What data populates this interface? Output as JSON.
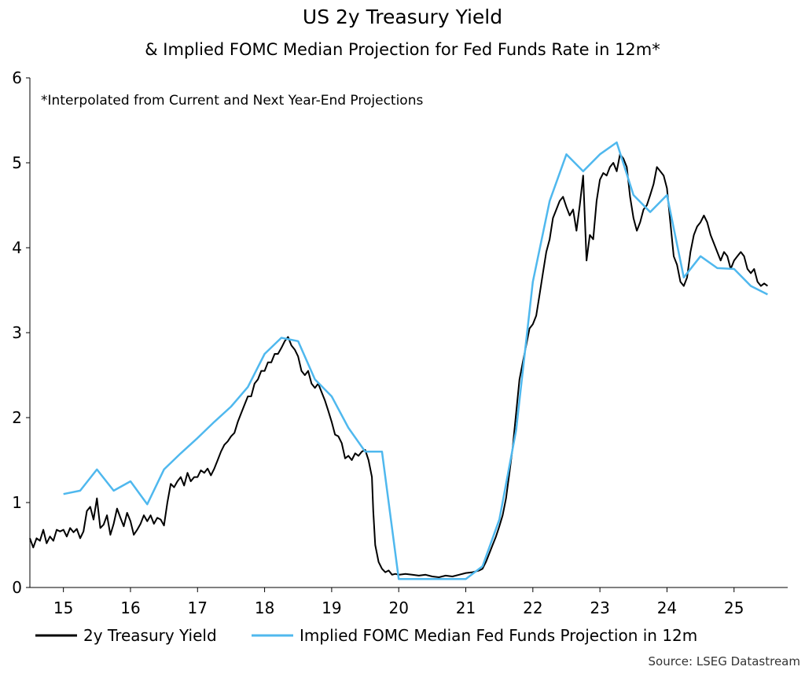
{
  "chart_data": {
    "type": "line",
    "title": "US 2y Treasury Yield",
    "subtitle": "& Implied FOMC Median Projection for Fed Funds Rate in 12m*",
    "note": "*Interpolated from Current and Next Year-End Projections",
    "source": "Source: LSEG Datastream",
    "xlabel": "",
    "ylabel": "",
    "xlim": [
      2014.5,
      2025.8
    ],
    "ylim": [
      0,
      6
    ],
    "yticks": [
      0,
      1,
      2,
      3,
      4,
      5,
      6
    ],
    "xtick_labels": [
      {
        "label": "15",
        "x": 2015.0
      },
      {
        "label": "16",
        "x": 2016.0
      },
      {
        "label": "17",
        "x": 2017.0
      },
      {
        "label": "18",
        "x": 2018.0
      },
      {
        "label": "19",
        "x": 2019.0
      },
      {
        "label": "20",
        "x": 2020.0
      },
      {
        "label": "21",
        "x": 2021.0
      },
      {
        "label": "22",
        "x": 2022.0
      },
      {
        "label": "23",
        "x": 2023.0
      },
      {
        "label": "24",
        "x": 2024.0
      },
      {
        "label": "25",
        "x": 2025.0
      }
    ],
    "legend_position": "bottom",
    "series": [
      {
        "name": "2y Treasury Yield",
        "color": "#000000",
        "points": [
          [
            2014.5,
            0.58
          ],
          [
            2014.55,
            0.47
          ],
          [
            2014.6,
            0.58
          ],
          [
            2014.65,
            0.55
          ],
          [
            2014.7,
            0.68
          ],
          [
            2014.75,
            0.52
          ],
          [
            2014.8,
            0.6
          ],
          [
            2014.85,
            0.55
          ],
          [
            2014.9,
            0.68
          ],
          [
            2014.95,
            0.66
          ],
          [
            2015.0,
            0.68
          ],
          [
            2015.05,
            0.6
          ],
          [
            2015.1,
            0.7
          ],
          [
            2015.15,
            0.65
          ],
          [
            2015.2,
            0.69
          ],
          [
            2015.25,
            0.58
          ],
          [
            2015.3,
            0.66
          ],
          [
            2015.35,
            0.9
          ],
          [
            2015.4,
            0.95
          ],
          [
            2015.45,
            0.8
          ],
          [
            2015.5,
            1.05
          ],
          [
            2015.55,
            0.7
          ],
          [
            2015.6,
            0.74
          ],
          [
            2015.65,
            0.85
          ],
          [
            2015.7,
            0.62
          ],
          [
            2015.75,
            0.75
          ],
          [
            2015.8,
            0.93
          ],
          [
            2015.85,
            0.82
          ],
          [
            2015.9,
            0.72
          ],
          [
            2015.95,
            0.88
          ],
          [
            2016.0,
            0.78
          ],
          [
            2016.05,
            0.62
          ],
          [
            2016.1,
            0.68
          ],
          [
            2016.15,
            0.75
          ],
          [
            2016.2,
            0.85
          ],
          [
            2016.25,
            0.78
          ],
          [
            2016.3,
            0.85
          ],
          [
            2016.35,
            0.75
          ],
          [
            2016.4,
            0.82
          ],
          [
            2016.45,
            0.8
          ],
          [
            2016.5,
            0.73
          ],
          [
            2016.55,
            1.0
          ],
          [
            2016.6,
            1.22
          ],
          [
            2016.65,
            1.18
          ],
          [
            2016.7,
            1.25
          ],
          [
            2016.75,
            1.3
          ],
          [
            2016.8,
            1.2
          ],
          [
            2016.85,
            1.35
          ],
          [
            2016.9,
            1.25
          ],
          [
            2016.95,
            1.3
          ],
          [
            2017.0,
            1.3
          ],
          [
            2017.05,
            1.38
          ],
          [
            2017.1,
            1.35
          ],
          [
            2017.15,
            1.4
          ],
          [
            2017.2,
            1.32
          ],
          [
            2017.25,
            1.4
          ],
          [
            2017.3,
            1.5
          ],
          [
            2017.35,
            1.6
          ],
          [
            2017.4,
            1.68
          ],
          [
            2017.45,
            1.72
          ],
          [
            2017.5,
            1.78
          ],
          [
            2017.55,
            1.82
          ],
          [
            2017.6,
            1.95
          ],
          [
            2017.65,
            2.05
          ],
          [
            2017.7,
            2.15
          ],
          [
            2017.75,
            2.25
          ],
          [
            2017.8,
            2.25
          ],
          [
            2017.85,
            2.4
          ],
          [
            2017.9,
            2.45
          ],
          [
            2017.95,
            2.55
          ],
          [
            2018.0,
            2.55
          ],
          [
            2018.05,
            2.65
          ],
          [
            2018.1,
            2.65
          ],
          [
            2018.15,
            2.75
          ],
          [
            2018.2,
            2.75
          ],
          [
            2018.25,
            2.82
          ],
          [
            2018.3,
            2.9
          ],
          [
            2018.35,
            2.95
          ],
          [
            2018.4,
            2.85
          ],
          [
            2018.45,
            2.8
          ],
          [
            2018.5,
            2.72
          ],
          [
            2018.55,
            2.55
          ],
          [
            2018.6,
            2.5
          ],
          [
            2018.65,
            2.55
          ],
          [
            2018.7,
            2.4
          ],
          [
            2018.75,
            2.35
          ],
          [
            2018.8,
            2.4
          ],
          [
            2018.85,
            2.3
          ],
          [
            2018.9,
            2.2
          ],
          [
            2018.95,
            2.08
          ],
          [
            2019.0,
            1.95
          ],
          [
            2019.05,
            1.8
          ],
          [
            2019.1,
            1.78
          ],
          [
            2019.15,
            1.7
          ],
          [
            2019.2,
            1.52
          ],
          [
            2019.25,
            1.55
          ],
          [
            2019.3,
            1.5
          ],
          [
            2019.35,
            1.58
          ],
          [
            2019.4,
            1.55
          ],
          [
            2019.45,
            1.6
          ],
          [
            2019.5,
            1.62
          ],
          [
            2019.55,
            1.5
          ],
          [
            2019.6,
            1.3
          ],
          [
            2019.62,
            0.9
          ],
          [
            2019.65,
            0.5
          ],
          [
            2019.7,
            0.3
          ],
          [
            2019.75,
            0.22
          ],
          [
            2019.8,
            0.18
          ],
          [
            2019.85,
            0.2
          ],
          [
            2019.9,
            0.15
          ],
          [
            2019.95,
            0.16
          ],
          [
            2020.0,
            0.15
          ],
          [
            2020.1,
            0.16
          ],
          [
            2020.2,
            0.15
          ],
          [
            2020.3,
            0.14
          ],
          [
            2020.4,
            0.15
          ],
          [
            2020.5,
            0.13
          ],
          [
            2020.6,
            0.12
          ],
          [
            2020.7,
            0.14
          ],
          [
            2020.8,
            0.13
          ],
          [
            2020.9,
            0.15
          ],
          [
            2021.0,
            0.17
          ],
          [
            2021.1,
            0.18
          ],
          [
            2021.2,
            0.2
          ],
          [
            2021.25,
            0.22
          ],
          [
            2021.3,
            0.3
          ],
          [
            2021.35,
            0.4
          ],
          [
            2021.4,
            0.5
          ],
          [
            2021.45,
            0.6
          ],
          [
            2021.5,
            0.72
          ],
          [
            2021.55,
            0.85
          ],
          [
            2021.6,
            1.05
          ],
          [
            2021.65,
            1.35
          ],
          [
            2021.7,
            1.65
          ],
          [
            2021.75,
            2.05
          ],
          [
            2021.8,
            2.45
          ],
          [
            2021.85,
            2.65
          ],
          [
            2021.9,
            2.85
          ],
          [
            2021.95,
            3.05
          ],
          [
            2022.0,
            3.1
          ],
          [
            2022.05,
            3.2
          ],
          [
            2022.1,
            3.45
          ],
          [
            2022.15,
            3.7
          ],
          [
            2022.2,
            3.95
          ],
          [
            2022.25,
            4.1
          ],
          [
            2022.3,
            4.35
          ],
          [
            2022.35,
            4.45
          ],
          [
            2022.4,
            4.55
          ],
          [
            2022.45,
            4.6
          ],
          [
            2022.5,
            4.48
          ],
          [
            2022.55,
            4.38
          ],
          [
            2022.6,
            4.45
          ],
          [
            2022.65,
            4.2
          ],
          [
            2022.7,
            4.5
          ],
          [
            2022.75,
            4.85
          ],
          [
            2022.8,
            3.85
          ],
          [
            2022.85,
            4.15
          ],
          [
            2022.9,
            4.1
          ],
          [
            2022.95,
            4.55
          ],
          [
            2023.0,
            4.8
          ],
          [
            2023.05,
            4.88
          ],
          [
            2023.1,
            4.85
          ],
          [
            2023.15,
            4.95
          ],
          [
            2023.2,
            5.0
          ],
          [
            2023.25,
            4.9
          ],
          [
            2023.3,
            5.1
          ],
          [
            2023.35,
            5.05
          ],
          [
            2023.4,
            4.95
          ],
          [
            2023.45,
            4.6
          ],
          [
            2023.5,
            4.35
          ],
          [
            2023.55,
            4.2
          ],
          [
            2023.6,
            4.3
          ],
          [
            2023.65,
            4.45
          ],
          [
            2023.7,
            4.5
          ],
          [
            2023.75,
            4.62
          ],
          [
            2023.8,
            4.75
          ],
          [
            2023.85,
            4.95
          ],
          [
            2023.9,
            4.9
          ],
          [
            2023.95,
            4.85
          ],
          [
            2024.0,
            4.7
          ],
          [
            2024.05,
            4.3
          ],
          [
            2024.1,
            3.9
          ],
          [
            2024.15,
            3.8
          ],
          [
            2024.2,
            3.6
          ],
          [
            2024.25,
            3.55
          ],
          [
            2024.3,
            3.65
          ],
          [
            2024.35,
            3.95
          ],
          [
            2024.4,
            4.15
          ],
          [
            2024.45,
            4.25
          ],
          [
            2024.5,
            4.3
          ],
          [
            2024.55,
            4.38
          ],
          [
            2024.6,
            4.3
          ],
          [
            2024.65,
            4.15
          ],
          [
            2024.7,
            4.05
          ],
          [
            2024.75,
            3.95
          ],
          [
            2024.8,
            3.85
          ],
          [
            2024.85,
            3.95
          ],
          [
            2024.9,
            3.9
          ],
          [
            2024.95,
            3.75
          ],
          [
            2025.0,
            3.85
          ],
          [
            2025.05,
            3.9
          ],
          [
            2025.1,
            3.95
          ],
          [
            2025.15,
            3.9
          ],
          [
            2025.2,
            3.75
          ],
          [
            2025.25,
            3.7
          ],
          [
            2025.3,
            3.75
          ],
          [
            2025.35,
            3.6
          ],
          [
            2025.4,
            3.55
          ],
          [
            2025.45,
            3.58
          ],
          [
            2025.5,
            3.55
          ]
        ]
      },
      {
        "name": "Implied FOMC Median Fed Funds Projection in 12m",
        "color": "#4fb8ee",
        "points": [
          [
            2015.0,
            1.1
          ],
          [
            2015.25,
            1.14
          ],
          [
            2015.5,
            1.39
          ],
          [
            2015.75,
            1.14
          ],
          [
            2016.0,
            1.25
          ],
          [
            2016.25,
            0.98
          ],
          [
            2016.5,
            1.39
          ],
          [
            2016.75,
            1.58
          ],
          [
            2017.0,
            1.76
          ],
          [
            2017.25,
            1.95
          ],
          [
            2017.5,
            2.13
          ],
          [
            2017.75,
            2.36
          ],
          [
            2018.0,
            2.75
          ],
          [
            2018.25,
            2.94
          ],
          [
            2018.5,
            2.9
          ],
          [
            2018.75,
            2.45
          ],
          [
            2019.0,
            2.25
          ],
          [
            2019.25,
            1.88
          ],
          [
            2019.5,
            1.6
          ],
          [
            2019.75,
            1.6
          ],
          [
            2020.0,
            0.1
          ],
          [
            2020.25,
            0.1
          ],
          [
            2020.5,
            0.1
          ],
          [
            2020.75,
            0.1
          ],
          [
            2021.0,
            0.1
          ],
          [
            2021.25,
            0.25
          ],
          [
            2021.5,
            0.8
          ],
          [
            2021.75,
            1.85
          ],
          [
            2022.0,
            3.6
          ],
          [
            2022.25,
            4.55
          ],
          [
            2022.5,
            5.1
          ],
          [
            2022.75,
            4.9
          ],
          [
            2023.0,
            5.1
          ],
          [
            2023.25,
            5.24
          ],
          [
            2023.5,
            4.62
          ],
          [
            2023.75,
            4.42
          ],
          [
            2024.0,
            4.62
          ],
          [
            2024.25,
            3.65
          ],
          [
            2024.5,
            3.9
          ],
          [
            2024.75,
            3.76
          ],
          [
            2025.0,
            3.75
          ],
          [
            2025.25,
            3.55
          ],
          [
            2025.5,
            3.45
          ]
        ]
      }
    ]
  }
}
